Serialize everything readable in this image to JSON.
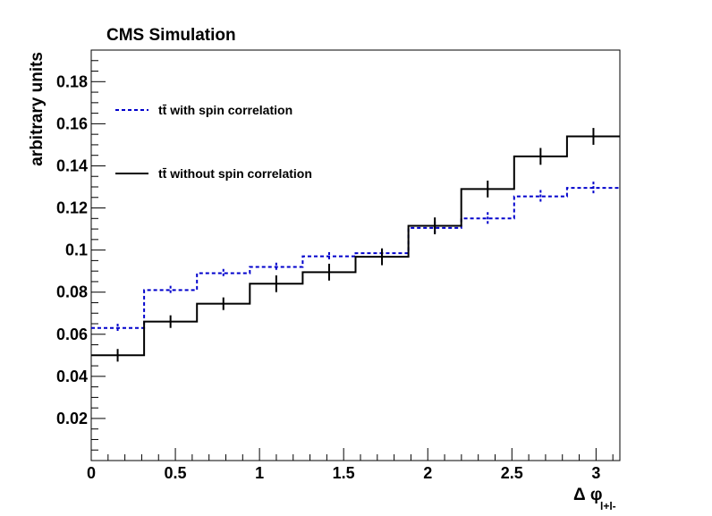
{
  "chart_data": {
    "type": "step",
    "title": "CMS Simulation",
    "xlabel_symbol": "Δ φ",
    "xlabel_subscript": "l+l-",
    "ylabel": "arbitrary units",
    "xlim": [
      0,
      3.1416
    ],
    "ylim": [
      0,
      0.195
    ],
    "x_ticks": [
      0,
      0.5,
      1,
      1.5,
      2,
      2.5,
      3
    ],
    "x_tick_labels": [
      "0",
      "0.5",
      "1",
      "1.5",
      "2",
      "2.5",
      "3"
    ],
    "y_ticks": [
      0.02,
      0.04,
      0.06,
      0.08,
      0.1,
      0.12,
      0.14,
      0.16,
      0.18
    ],
    "y_tick_labels": [
      "0.02",
      "0.04",
      "0.06",
      "0.08",
      "0.1",
      "0.12",
      "0.14",
      "0.16",
      "0.18"
    ],
    "bin_edges": [
      0,
      0.3142,
      0.6283,
      0.9425,
      1.2566,
      1.5708,
      1.885,
      2.1991,
      2.5133,
      2.8274,
      3.1416
    ],
    "series": [
      {
        "name": "tt̄ with spin correlation",
        "color": "#0000cc",
        "style": "dashed",
        "values": [
          0.063,
          0.081,
          0.089,
          0.092,
          0.097,
          0.0985,
          0.1105,
          0.115,
          0.1255,
          0.1295
        ],
        "errors": [
          0.002,
          0.002,
          0.002,
          0.002,
          0.002,
          0.002,
          0.003,
          0.003,
          0.003,
          0.003
        ]
      },
      {
        "name": "tt̄ without spin correlation",
        "color": "#000000",
        "style": "solid",
        "values": [
          0.05,
          0.066,
          0.0745,
          0.084,
          0.0895,
          0.0968,
          0.1115,
          0.129,
          0.1445,
          0.154
        ],
        "errors": [
          0.003,
          0.003,
          0.003,
          0.004,
          0.004,
          0.004,
          0.004,
          0.004,
          0.004,
          0.004
        ]
      }
    ],
    "legend_position": "top-left"
  }
}
